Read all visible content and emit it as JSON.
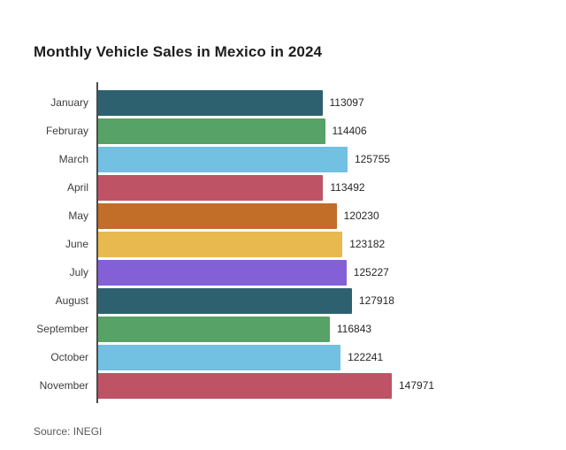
{
  "page": {
    "background_color": "#ffffff"
  },
  "chart_data": {
    "type": "bar",
    "orientation": "horizontal",
    "title": "Monthly Vehicle Sales in Mexico in 2024",
    "source_note": "Source: INEGI",
    "categories": [
      "January",
      "Februray",
      "March",
      "April",
      "May",
      "June",
      "July",
      "August",
      "September",
      "October",
      "November"
    ],
    "values": [
      113097,
      114406,
      125755,
      113492,
      120230,
      123182,
      125227,
      127918,
      116843,
      122241,
      147971
    ],
    "bar_colors": [
      "#2e6170",
      "#57a266",
      "#72c0e2",
      "#bd5364",
      "#c26d28",
      "#e7b94e",
      "#8360d6",
      "#2e6170",
      "#57a266",
      "#72c0e2",
      "#bd5364"
    ],
    "palette": [
      "#2e6170",
      "#57a266",
      "#72c0e2",
      "#bd5364",
      "#c26d28",
      "#e7b94e",
      "#8360d6"
    ],
    "value_labels_shown": true,
    "grid": false,
    "legend": null,
    "axis_line_color": "#4c4c4c",
    "title_color": "#1d1d1d",
    "category_label_color": "#3d3d3d",
    "value_label_color": "#262626",
    "source_color": "#5a5a5a"
  }
}
